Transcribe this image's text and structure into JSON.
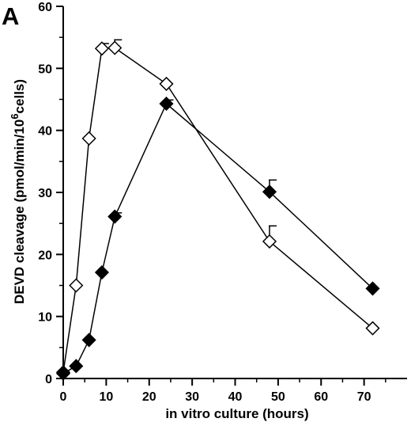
{
  "panel_label": "A",
  "chart_data": {
    "type": "scatter",
    "xlabel": "in vitro culture (hours)",
    "ylabel": "DEVD cleavage (pmol/min/10^6 cells)",
    "ylabel_parts": {
      "before": "DEVD cleavage (pmol/min/10",
      "superscript": "6",
      "after": "cells)"
    },
    "xlim": [
      0,
      80
    ],
    "ylim": [
      0,
      60
    ],
    "xticks": [
      "0",
      "10",
      "20",
      "30",
      "40",
      "50",
      "60",
      "70"
    ],
    "yticks": [
      "0",
      "10",
      "20",
      "30",
      "40",
      "50",
      "60"
    ],
    "grid": false,
    "legend": "none",
    "series": [
      {
        "marker": "diamond-open",
        "color": "#000000",
        "x": [
          0,
          3,
          6,
          9,
          12,
          24,
          48,
          72
        ],
        "y": [
          1,
          15,
          38.7,
          53.2,
          53.3,
          47.5,
          22.1,
          8.1
        ],
        "err": [
          0,
          0,
          0,
          0.8,
          1.3,
          0,
          2.5,
          0
        ]
      },
      {
        "marker": "diamond-filled",
        "color": "#000000",
        "x": [
          0,
          3,
          6,
          9,
          12,
          24,
          48,
          72
        ],
        "y": [
          0.8,
          2,
          6.2,
          17.1,
          26.1,
          44.3,
          30.1,
          14.5
        ],
        "err": [
          0,
          0,
          0,
          0,
          0.6,
          0.6,
          1.9,
          0
        ]
      }
    ]
  }
}
